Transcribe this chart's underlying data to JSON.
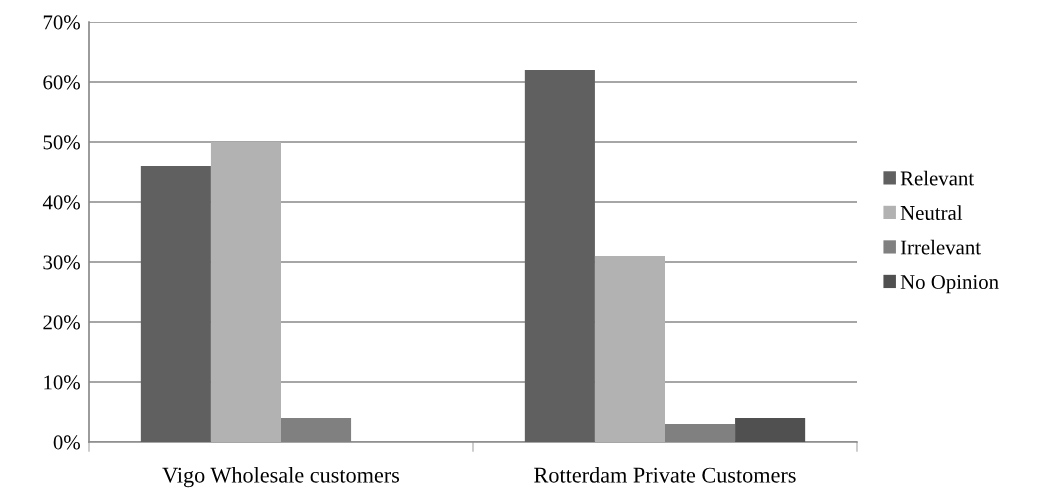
{
  "chart_data": {
    "type": "bar",
    "categories": [
      "Vigo Wholesale customers",
      "Rotterdam Private Customers"
    ],
    "series": [
      {
        "name": "Relevant",
        "color": "#606060",
        "values": [
          46,
          62
        ]
      },
      {
        "name": "Neutral",
        "color": "#b2b2b2",
        "values": [
          50,
          31
        ]
      },
      {
        "name": "Irrelevant",
        "color": "#808080",
        "values": [
          4,
          3
        ]
      },
      {
        "name": "No Opinion",
        "color": "#505050",
        "values": [
          0,
          4
        ]
      }
    ],
    "ylim": [
      0,
      70
    ],
    "yticks": [
      {
        "value": 0,
        "label": "0%"
      },
      {
        "value": 10,
        "label": "10%"
      },
      {
        "value": 20,
        "label": "20%"
      },
      {
        "value": 30,
        "label": "30%"
      },
      {
        "value": 40,
        "label": "40%"
      },
      {
        "value": 50,
        "label": "50%"
      },
      {
        "value": 60,
        "label": "60%"
      },
      {
        "value": 70,
        "label": "70%"
      }
    ],
    "grid": "y",
    "legend": "right"
  }
}
